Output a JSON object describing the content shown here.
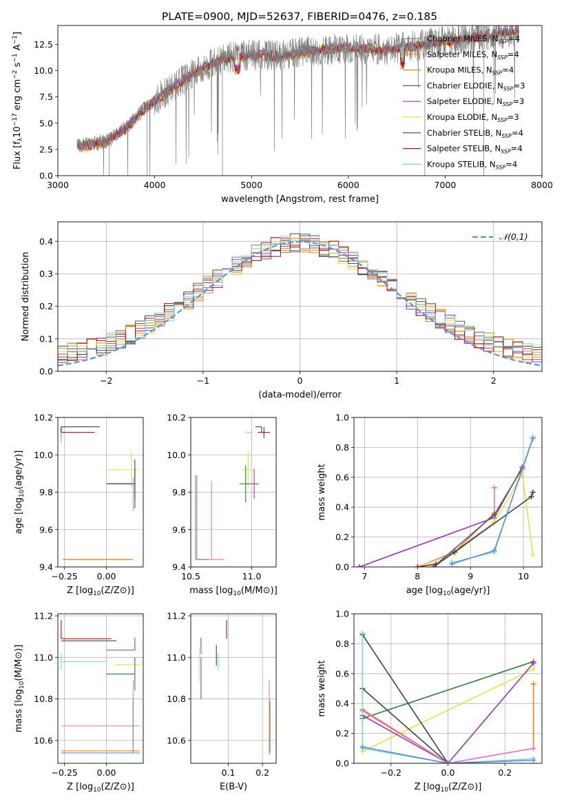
{
  "figure_title": "PLATE=0900, MJD=52637, FIBERID=0476, z=0.185",
  "colors": {
    "grid": "#b0b0b0",
    "gaussian": "#5b8fd6",
    "series": [
      "#808080",
      "#ff7f0e",
      "#e08030",
      "#5a5a5a",
      "#9b30b5",
      "#d4e84f",
      "#404040",
      "#a01010",
      "#7fd0d0",
      "#e377c2",
      "#2e7d32"
    ]
  },
  "chart_data": [
    {
      "id": "spectrum",
      "type": "line",
      "title": "PLATE=0900, MJD=52637, FIBERID=0476, z=0.185",
      "xlabel": "wavelength [Angstrom, rest frame]",
      "ylabel": "Flux [f_λ 10^-17 erg cm^-2 s^-1 A^-1]",
      "xlim": [
        3000,
        8000
      ],
      "ylim": [
        0,
        14.3
      ],
      "xticks": [
        "3000",
        "4000",
        "5000",
        "6000",
        "7000",
        "8000"
      ],
      "yticks": [
        "0.0",
        "2.5",
        "5.0",
        "7.5",
        "10.0",
        "12.5"
      ],
      "legend_position": "top-right",
      "grid": false,
      "legend": [
        "Chabrier MILES, N_SSP=4",
        "Salpeter MILES, N_SSP=4",
        "Kroupa MILES, N_SSP=4",
        "Chabrier ELODIE, N_SSP=3",
        "Salpeter ELODIE, N_SSP=3",
        "Kroupa ELODIE, N_SSP=3",
        "Chabrier STELIB, N_SSP=4",
        "Salpeter STELIB, N_SSP=4",
        "Kroupa STELIB, N_SSP=4"
      ],
      "legend_colors": [
        "#808080",
        "#ff7f0e",
        "#e08030",
        "#5a5a5a",
        "#9b30b5",
        "#d4e84f",
        "#404040",
        "#a01010",
        "#7fd0d0"
      ],
      "continuum_knots": {
        "x": [
          3200,
          3500,
          3700,
          3900,
          4100,
          4400,
          4700,
          5000,
          5300,
          5600,
          6000,
          6400,
          6700,
          7000,
          7400,
          7750
        ],
        "y": [
          2.8,
          3.3,
          4.5,
          6.5,
          7.8,
          9.8,
          11.2,
          11.5,
          11.4,
          11.9,
          12.2,
          12.0,
          12.4,
          12.8,
          13.3,
          13.8
        ]
      },
      "dips": [
        {
          "x": 4700,
          "y": 0.0
        },
        {
          "x": 3530,
          "y": 0.0
        },
        {
          "x": 3920,
          "y": 0.0
        },
        {
          "x": 6790,
          "y": 0.0
        },
        {
          "x": 7400,
          "y": 0.0
        }
      ]
    },
    {
      "id": "residuals",
      "type": "histogram",
      "xlabel": "(data-model)/error",
      "ylabel": "Normed distribution",
      "xlim": [
        -2.5,
        2.5
      ],
      "ylim": [
        0,
        0.46
      ],
      "xticks": [
        "−2",
        "−1",
        "0",
        "1",
        "2"
      ],
      "yticks": [
        "0.0",
        "0.1",
        "0.2",
        "0.3",
        "0.4"
      ],
      "grid": true,
      "legend": "𝒩(0,1)",
      "legend_position": "top-right",
      "bin_width": 0.1,
      "series_count": 9
    },
    {
      "id": "age_vs_Z",
      "type": "errorbar",
      "xlabel": "Z [log10(Z/Z_⊙)]",
      "ylabel": "age  [log10(age/yr)]",
      "xlim": [
        -0.29,
        0.22
      ],
      "ylim": [
        9.4,
        10.2
      ],
      "xticks": [
        "−0.25",
        "0.00"
      ],
      "yticks": [
        "9.4",
        "9.6",
        "9.8",
        "10.0",
        "10.2"
      ],
      "grid": true,
      "points": [
        {
          "x": -0.27,
          "y": 10.15,
          "xerr": [
            0.0,
            0.23
          ],
          "yerr": [
            0.03,
            0.0
          ],
          "c": "#404040"
        },
        {
          "x": -0.27,
          "y": 10.12,
          "xerr": [
            0.0,
            0.2
          ],
          "yerr": [
            0.03,
            0.03
          ],
          "c": "#a01010"
        },
        {
          "x": -0.27,
          "y": 10.1,
          "xerr": [
            0.0,
            0.0
          ],
          "yerr": [
            0.04,
            0.02
          ],
          "c": "#7fd0d0"
        },
        {
          "x": 0.15,
          "y": 9.92,
          "xerr": [
            0.15,
            0.04
          ],
          "yerr": [
            0.1,
            0.1
          ],
          "c": "#d4e84f"
        },
        {
          "x": 0.17,
          "y": 9.845,
          "xerr": [
            0.17,
            0.0
          ],
          "yerr": [
            0.08,
            0.08
          ],
          "c": "#9b30b5"
        },
        {
          "x": 0.17,
          "y": 9.845,
          "xerr": [
            0.17,
            0.0
          ],
          "yerr": [
            0.13,
            0.13
          ],
          "c": "#404040"
        },
        {
          "x": 0.16,
          "y": 9.7,
          "xerr": [
            0.0,
            0.0
          ],
          "yerr": [
            0.0,
            0.18
          ],
          "c": "#e377c2"
        },
        {
          "x": 0.16,
          "y": 9.44,
          "xerr": [
            0.42,
            0.0
          ],
          "yerr": [
            0.0,
            0.0
          ],
          "c": "#ff7f0e"
        },
        {
          "x": 0.16,
          "y": 9.44,
          "xerr": [
            0.42,
            0.0
          ],
          "yerr": [
            0.0,
            0.0
          ],
          "c": "#e08030"
        }
      ]
    },
    {
      "id": "age_vs_mass",
      "type": "errorbar",
      "xlabel": "mass [log10(M/M_⊙)]",
      "ylabel": "",
      "xlim": [
        10.5,
        11.2
      ],
      "ylim": [
        9.4,
        10.2
      ],
      "xticks": [
        "10.5",
        "11.0"
      ],
      "yticks": [
        "9.4",
        "9.6",
        "9.8",
        "10.0",
        "10.2"
      ],
      "grid": true,
      "points": [
        {
          "x": 11.08,
          "y": 10.15,
          "xerr": [
            0.05,
            0.0
          ],
          "yerr": [
            0.03,
            0.0
          ],
          "c": "#404040"
        },
        {
          "x": 11.1,
          "y": 10.12,
          "xerr": [
            0.05,
            0.05
          ],
          "yerr": [
            0.03,
            0.03
          ],
          "c": "#a01010"
        },
        {
          "x": 11.0,
          "y": 10.12,
          "xerr": [
            0.05,
            0.0
          ],
          "yerr": [
            0.05,
            0.02
          ],
          "c": "#7fd0d0"
        },
        {
          "x": 10.97,
          "y": 9.92,
          "xerr": [
            0.05,
            0.05
          ],
          "yerr": [
            0.1,
            0.1
          ],
          "c": "#d4e84f"
        },
        {
          "x": 11.02,
          "y": 9.845,
          "xerr": [
            0.07,
            0.04
          ],
          "yerr": [
            0.08,
            0.08
          ],
          "c": "#9b30b5"
        },
        {
          "x": 10.95,
          "y": 9.845,
          "xerr": [
            0.05,
            0.0
          ],
          "yerr": [
            0.1,
            0.1
          ],
          "c": "#2e7d32"
        },
        {
          "x": 10.67,
          "y": 9.44,
          "xerr": [
            0.1,
            0.1
          ],
          "yerr": [
            0.0,
            0.42
          ],
          "c": "#e377c2"
        },
        {
          "x": 10.55,
          "y": 9.44,
          "xerr": [
            0.0,
            0.1
          ],
          "yerr": [
            0.0,
            0.45
          ],
          "c": "#ff7f0e"
        },
        {
          "x": 10.54,
          "y": 9.44,
          "xerr": [
            0.0,
            0.1
          ],
          "yerr": [
            0.0,
            0.45
          ],
          "c": "#5b8fd6"
        }
      ]
    },
    {
      "id": "mw_vs_age",
      "type": "line",
      "xlabel": "age  [log10(age/yr)]",
      "ylabel": "mass weight",
      "xlim": [
        6.8,
        10.35
      ],
      "ylim": [
        0,
        1.0
      ],
      "xticks": [
        "7",
        "8",
        "9",
        "10"
      ],
      "yticks": [
        "0.0",
        "0.2",
        "0.4",
        "0.6",
        "0.8",
        "1.0"
      ],
      "grid": true,
      "series": [
        {
          "c": "#9b30b5",
          "x": [
            6.9,
            9.45,
            9.98
          ],
          "y": [
            0.0,
            0.33,
            0.67
          ]
        },
        {
          "c": "#e08030",
          "x": [
            8.0,
            8.7,
            9.45,
            9.45
          ],
          "y": [
            0.0,
            0.1,
            0.36,
            0.53
          ]
        },
        {
          "c": "#e377c2",
          "x": [
            8.0,
            8.7,
            9.45,
            9.45
          ],
          "y": [
            0.0,
            0.1,
            0.3,
            0.53
          ]
        },
        {
          "c": "#d4e84f",
          "x": [
            8.0,
            8.7,
            9.45,
            9.98,
            10.18
          ],
          "y": [
            0.0,
            0.09,
            0.3,
            0.62,
            0.08
          ]
        },
        {
          "c": "#404040",
          "x": [
            8.3,
            8.7,
            10.15,
            10.18
          ],
          "y": [
            0.0,
            0.1,
            0.47,
            0.5
          ]
        },
        {
          "c": "#5a5a5a",
          "x": [
            8.3,
            9.45,
            9.98
          ],
          "y": [
            0.0,
            0.35,
            0.66
          ]
        },
        {
          "c": "#7fd0d0",
          "x": [
            8.65,
            9.45,
            10.18
          ],
          "y": [
            0.03,
            0.1,
            0.87
          ]
        },
        {
          "c": "#5b8fd6",
          "x": [
            8.65,
            9.45,
            10.18
          ],
          "y": [
            0.02,
            0.11,
            0.86
          ]
        },
        {
          "c": "#a01010",
          "x": [
            8.0,
            8.35
          ],
          "y": [
            0.0,
            0.02
          ]
        }
      ]
    },
    {
      "id": "mass_vs_Z",
      "type": "errorbar",
      "xlabel": "Z [log10(Z/Z_⊙)]",
      "ylabel": "mass [log10(M/M_⊙)]",
      "xlim": [
        -0.29,
        0.22
      ],
      "ylim": [
        10.49,
        11.21
      ],
      "xticks": [
        "−0.25",
        "0.00"
      ],
      "yticks": [
        "10.6",
        "10.8",
        "11.0",
        "11.2"
      ],
      "grid": true,
      "points": [
        {
          "x": -0.27,
          "y": 11.09,
          "xerr": [
            0.0,
            0.3
          ],
          "yerr": [
            0.0,
            0.09
          ],
          "c": "#a01010"
        },
        {
          "x": -0.27,
          "y": 11.08,
          "xerr": [
            0.0,
            0.33
          ],
          "yerr": [
            0.0,
            0.0
          ],
          "c": "#404040"
        },
        {
          "x": -0.27,
          "y": 10.98,
          "xerr": [
            0.0,
            0.27
          ],
          "yerr": [
            0.04,
            0.04
          ],
          "c": "#7fd0d0"
        },
        {
          "x": 0.17,
          "y": 11.035,
          "xerr": [
            0.17,
            0.0
          ],
          "yerr": [
            0.0,
            0.06
          ],
          "c": "#9b30b5"
        },
        {
          "x": 0.17,
          "y": 10.965,
          "xerr": [
            0.12,
            0.04
          ],
          "yerr": [
            0.0,
            0.0
          ],
          "c": "#d4e84f"
        },
        {
          "x": 0.17,
          "y": 10.92,
          "xerr": [
            0.17,
            0.0
          ],
          "yerr": [
            0.08,
            0.08
          ],
          "c": "#2e7d32"
        },
        {
          "x": 0.16,
          "y": 10.67,
          "xerr": [
            0.43,
            0.04
          ],
          "yerr": [
            0.12,
            0.22
          ],
          "c": "#e377c2"
        },
        {
          "x": 0.16,
          "y": 10.55,
          "xerr": [
            0.43,
            0.04
          ],
          "yerr": [
            0.0,
            0.25
          ],
          "c": "#ff7f0e"
        },
        {
          "x": 0.16,
          "y": 10.54,
          "xerr": [
            0.43,
            0.04
          ],
          "yerr": [
            0.0,
            0.25
          ],
          "c": "#5b8fd6"
        }
      ]
    },
    {
      "id": "mass_vs_ebv",
      "type": "errorbar",
      "xlabel": "E(B-V)",
      "ylabel": "",
      "xlim": [
        -0.01,
        0.24
      ],
      "ylim": [
        10.49,
        11.21
      ],
      "xticks": [
        "0.1",
        "0.2"
      ],
      "yticks": [
        "10.6",
        "10.8",
        "11.0",
        "11.2"
      ],
      "grid": true,
      "points": [
        {
          "x": 0.095,
          "y": 11.09,
          "xerr": [
            0.0,
            0.0
          ],
          "yerr": [
            0.0,
            0.09
          ],
          "c": "#a01010"
        },
        {
          "x": 0.065,
          "y": 11.0,
          "xerr": [
            0.0,
            0.0
          ],
          "yerr": [
            0.04,
            0.06
          ],
          "c": "#404040"
        },
        {
          "x": 0.07,
          "y": 10.98,
          "xerr": [
            0.0,
            0.0
          ],
          "yerr": [
            0.04,
            0.04
          ],
          "c": "#7fd0d0"
        },
        {
          "x": 0.02,
          "y": 11.035,
          "xerr": [
            0.0,
            0.0
          ],
          "yerr": [
            0.02,
            0.06
          ],
          "c": "#9b30b5"
        },
        {
          "x": 0.015,
          "y": 10.965,
          "xerr": [
            0.0,
            0.0
          ],
          "yerr": [
            0.08,
            0.08
          ],
          "c": "#d4e84f"
        },
        {
          "x": 0.02,
          "y": 10.92,
          "xerr": [
            0.0,
            0.0
          ],
          "yerr": [
            0.12,
            0.08
          ],
          "c": "#2e7d32"
        },
        {
          "x": 0.22,
          "y": 10.67,
          "xerr": [
            0.0,
            0.0
          ],
          "yerr": [
            0.14,
            0.22
          ],
          "c": "#e377c2"
        },
        {
          "x": 0.22,
          "y": 10.55,
          "xerr": [
            0.0,
            0.0
          ],
          "yerr": [
            0.0,
            0.25
          ],
          "c": "#ff7f0e"
        },
        {
          "x": 0.222,
          "y": 10.54,
          "xerr": [
            0.0,
            0.0
          ],
          "yerr": [
            0.0,
            0.25
          ],
          "c": "#5b8fd6"
        }
      ]
    },
    {
      "id": "mw_vs_Z",
      "type": "line",
      "xlabel": "Z [log10(Z/Z_⊙)]",
      "ylabel": "mass weight",
      "xlim": [
        -0.33,
        0.33
      ],
      "ylim": [
        0,
        1.0
      ],
      "xticks": [
        "−0.2",
        "0.0",
        "0.2"
      ],
      "yticks": [
        "0.0",
        "0.2",
        "0.4",
        "0.6",
        "0.8",
        "1.0"
      ],
      "grid": true,
      "series": [
        {
          "c": "#2e7d32",
          "x": [
            -0.3,
            0.3
          ],
          "y": [
            0.3,
            0.68
          ]
        },
        {
          "c": "#d4e84f",
          "x": [
            -0.3,
            0.3
          ],
          "y": [
            0.08,
            0.63
          ]
        },
        {
          "c": "#9b30b5",
          "x": [
            -0.3,
            0.0,
            0.3
          ],
          "y": [
            0.32,
            0.0,
            0.67
          ]
        },
        {
          "c": "#404040",
          "x": [
            -0.3,
            0.0,
            -0.3
          ],
          "y": [
            0.5,
            0.0,
            0.86
          ]
        },
        {
          "c": "#e08030",
          "x": [
            -0.3,
            0.0,
            0.3,
            0.3
          ],
          "y": [
            0.36,
            0.0,
            0.1,
            0.53
          ]
        },
        {
          "c": "#e377c2",
          "x": [
            -0.3,
            0.0,
            0.3
          ],
          "y": [
            0.35,
            0.0,
            0.1
          ]
        },
        {
          "c": "#7fd0d0",
          "x": [
            -0.3,
            -0.3,
            0.0,
            0.3
          ],
          "y": [
            0.87,
            0.1,
            0.0,
            0.03
          ]
        },
        {
          "c": "#5b8fd6",
          "x": [
            -0.3,
            0.0,
            0.3
          ],
          "y": [
            0.11,
            0.0,
            0.02
          ]
        }
      ]
    }
  ]
}
